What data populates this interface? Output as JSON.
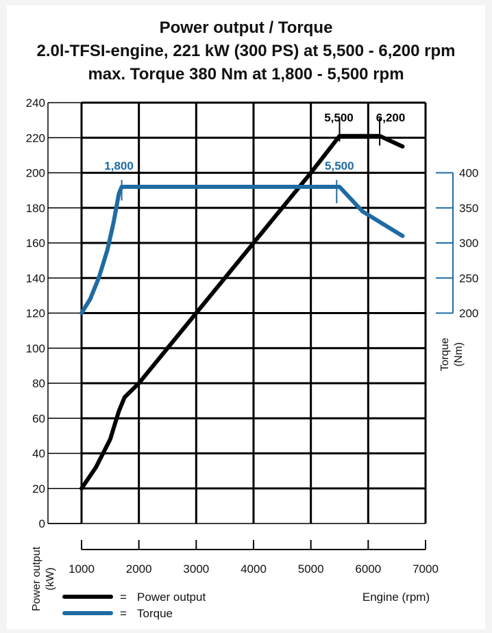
{
  "chart_data": {
    "type": "line",
    "title": "Power output / Torque",
    "subtitle_1": "2.0l-TFSI-engine, 221 kW (300 PS) at 5,500 - 6,200 rpm",
    "subtitle_2": "max. Torque 380 Nm at 1,800 - 5,500 rpm",
    "xlabel": "Engine (rpm)",
    "ylabel_left": "Power output (kW)",
    "ylabel_left_lines": [
      "Power output",
      "(kW)"
    ],
    "ylabel_right": "Torque (Nm)",
    "ylabel_right_lines": [
      "Torque",
      "(Nm)"
    ],
    "xlim": [
      1000,
      7000
    ],
    "ylim_left": [
      0,
      240
    ],
    "ylim_right": [
      200,
      400
    ],
    "x_ticks": [
      1000,
      2000,
      3000,
      4000,
      5000,
      6000,
      7000
    ],
    "y_ticks_left": [
      0,
      20,
      40,
      60,
      80,
      100,
      120,
      140,
      160,
      180,
      200,
      220,
      240
    ],
    "y_ticks_right": [
      200,
      250,
      300,
      350,
      400
    ],
    "grid": true,
    "series": [
      {
        "name": "Power output",
        "axis": "left",
        "color": "#000000",
        "x": [
          1000,
          1250,
          1500,
          1650,
          1750,
          2000,
          3000,
          4000,
          5000,
          5500,
          6200,
          6600
        ],
        "y": [
          20,
          32,
          48,
          64,
          72,
          80,
          120,
          160,
          200,
          221,
          221,
          215
        ]
      },
      {
        "name": "Torque",
        "axis": "right",
        "color": "#1f6ba3",
        "x": [
          1000,
          1150,
          1300,
          1450,
          1560,
          1650,
          1700,
          1800,
          5500,
          5900,
          6600
        ],
        "y": [
          200,
          220,
          250,
          290,
          330,
          370,
          380,
          380,
          380,
          345,
          310
        ]
      }
    ],
    "annotations": [
      {
        "label": "1,800",
        "series": "Torque",
        "color": "#1f6ba3"
      },
      {
        "label": "5,500",
        "series": "Torque",
        "color": "#1f6ba3"
      },
      {
        "label": "5,500",
        "series": "Power output",
        "color": "#000000"
      },
      {
        "label": "6,200",
        "series": "Power output",
        "color": "#000000"
      }
    ],
    "legend": {
      "placement": "bottom-left",
      "items": [
        {
          "name": "Power output",
          "color": "#000000"
        },
        {
          "name": "Torque",
          "color": "#1f6ba3"
        }
      ]
    }
  }
}
